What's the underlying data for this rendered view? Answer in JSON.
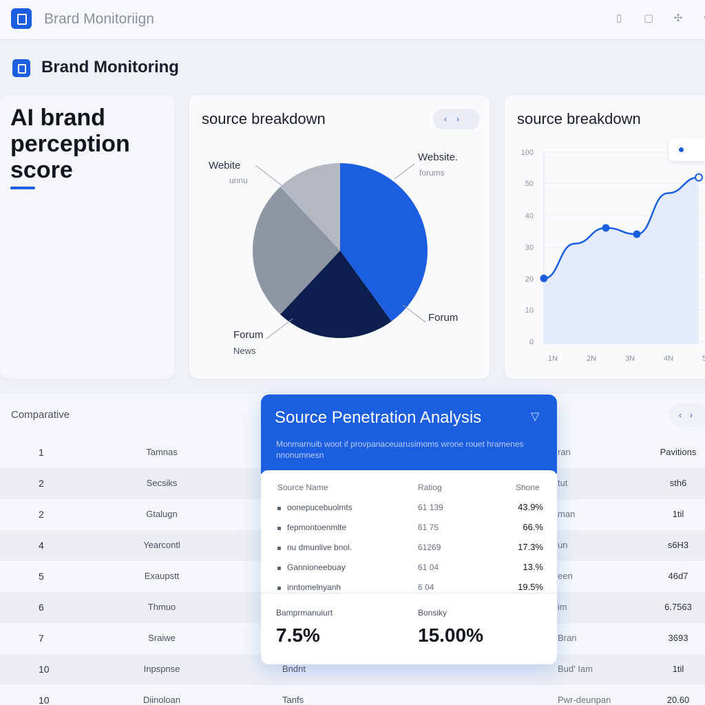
{
  "topbar": {
    "app_title": "Brard Monitoriign",
    "icons": [
      "panel-icon",
      "help-icon",
      "settings-icon",
      "user-icon"
    ]
  },
  "page": {
    "title": "Brand Monitoring"
  },
  "score_card": {
    "title": "AI brand perception score"
  },
  "pie_card": {
    "title": "source breakdown",
    "labels": {
      "website_left": "Webite",
      "website_left_sub": "unnu",
      "website_right": "Website.",
      "website_right_sub": "forums",
      "forum_right": "Forum",
      "forum_left": "Forum",
      "news": "News"
    }
  },
  "line_card": {
    "title": "source breakdown"
  },
  "table": {
    "label": "Comparative",
    "rows": [
      {
        "num": "1",
        "col2": "Tamnas",
        "col3": "",
        "col4": "ran",
        "col5": "Pavitions"
      },
      {
        "num": "2",
        "col2": "Secsiks",
        "col3": "",
        "col4": "tut",
        "col5": "sth6"
      },
      {
        "num": "2",
        "col2": "Gtalugn",
        "col3": "",
        "col4": "man",
        "col5": "1til"
      },
      {
        "num": "4",
        "col2": "Yearcontl",
        "col3": "",
        "col4": "un",
        "col5": "s6H3"
      },
      {
        "num": "5",
        "col2": "Exaupstt",
        "col3": "",
        "col4": "een",
        "col5": "46d7"
      },
      {
        "num": "6",
        "col2": "Thmuo",
        "col3": "",
        "col4": "im",
        "col5": "6.7563"
      },
      {
        "num": "7",
        "col2": "Sraiwe",
        "col3": "",
        "col4": "Bran",
        "col5": "3693"
      },
      {
        "num": "10",
        "col2": "Inpspnse",
        "col3": "Bndnt",
        "col4": "Bud' Iam",
        "col5": "1til"
      },
      {
        "num": "10",
        "col2": "Diinoloan",
        "col3": "Tanfs",
        "col4": "Pwr-deunpan",
        "col5": "20.60"
      }
    ]
  },
  "panel": {
    "title": "Source Penetration Analysis",
    "description": "Monmarnuib woot if provpanaceuarusimoms wrone rouet hramenes nnonumnesn",
    "headers": {
      "source": "Source Name",
      "value": "Ratiog",
      "pct": "Shone"
    },
    "rows": [
      {
        "name": "oonepucebuolmts",
        "value": "61 139",
        "pct": "43.9%"
      },
      {
        "name": "fepmontoenmlte",
        "value": "61 75",
        "pct": "66.%"
      },
      {
        "name": "nu dmunlive bnol.",
        "value": "61269",
        "pct": "17.3%"
      },
      {
        "name": "Gannioneebuay",
        "value": "61 04",
        "pct": "13.%"
      },
      {
        "name": "inntomelnyanh",
        "value": "6 04",
        "pct": "19.5%"
      }
    ],
    "summary": [
      {
        "label": "Bamprmanuiurt",
        "value": "7.5%"
      },
      {
        "label": "Bonsiky",
        "value": "15.00%"
      }
    ]
  },
  "chart_data": [
    {
      "type": "pie",
      "title": "source breakdown",
      "categories": [
        "Website",
        "Forum",
        "Forum",
        "Website"
      ],
      "values": [
        40,
        22,
        26,
        12
      ],
      "colors": [
        "#1b5fe0",
        "#0b1e4d",
        "#8f96a3",
        "#b3b8c2"
      ]
    },
    {
      "type": "line",
      "title": "source breakdown",
      "yticks": [
        "0",
        "10",
        "20",
        "30",
        "40",
        "50",
        "100"
      ],
      "xticks": [
        "1N",
        "2N",
        "3N",
        "4N",
        "5N"
      ],
      "x": [
        0,
        1,
        2,
        3,
        4,
        5
      ],
      "values": [
        20,
        31,
        36,
        34,
        47,
        52
      ],
      "ylim": [
        0,
        100
      ],
      "grid": true,
      "color": "#1b5fe0"
    }
  ]
}
